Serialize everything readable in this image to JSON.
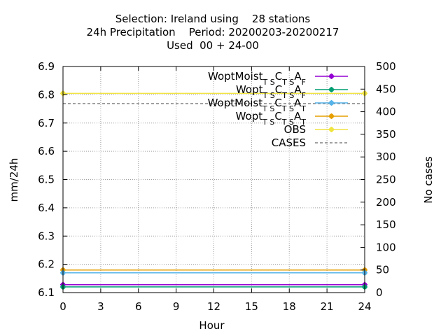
{
  "chart_data": {
    "type": "line",
    "title_lines": [
      "Selection: Ireland using    28 stations",
      "24h Precipitation    Period: 20200203-20200217",
      "Used  00 + 24-00"
    ],
    "xlabel": "Hour",
    "ylabel": "mm/24h",
    "y2label": "No cases",
    "xlim": [
      0,
      24
    ],
    "ylim": [
      6.1,
      6.9
    ],
    "y2lim": [
      0,
      500
    ],
    "xticks": [
      "0",
      "3",
      "6",
      "9",
      "12",
      "15",
      "18",
      "21",
      "24"
    ],
    "yticks": [
      "6.1",
      "6.2",
      "6.3",
      "6.4",
      "6.5",
      "6.6",
      "6.7",
      "6.8",
      "6.9"
    ],
    "y2ticks": [
      "0",
      "50",
      "100",
      "150",
      "200",
      "250",
      "300",
      "350",
      "400",
      "450",
      "500"
    ],
    "grid": true,
    "legend_position": "top-right",
    "series": [
      {
        "name": "WoptMoist",
        "sub1": "T S",
        "mid": "C",
        "sub2": "T S",
        "end": "A",
        "sub3": "F",
        "color": "#9400d3",
        "marker": true,
        "dashed": false,
        "axis": "y",
        "x": [
          0,
          24
        ],
        "values": [
          6.128,
          6.128
        ]
      },
      {
        "name": "Wopt",
        "sub1": "T S",
        "mid": "C",
        "sub2": "T S",
        "end": "A",
        "sub3": "F",
        "color": "#009e73",
        "marker": true,
        "dashed": false,
        "axis": "y",
        "x": [
          0,
          24
        ],
        "values": [
          6.12,
          6.12
        ]
      },
      {
        "name": "WoptMoist",
        "sub1": "T S",
        "mid": "C",
        "sub2": "T S",
        "end": "A",
        "sub3": "T",
        "color": "#56b4e9",
        "marker": true,
        "dashed": false,
        "axis": "y",
        "x": [
          0,
          24
        ],
        "values": [
          6.17,
          6.17
        ]
      },
      {
        "name": "Wopt",
        "sub1": "T S",
        "mid": "C",
        "sub2": "T S",
        "end": "A",
        "sub3": "T",
        "color": "#e69f00",
        "marker": true,
        "dashed": false,
        "axis": "y",
        "x": [
          0,
          24
        ],
        "values": [
          6.18,
          6.18
        ]
      },
      {
        "name": "OBS",
        "color": "#f0e442",
        "marker": true,
        "dashed": false,
        "axis": "y",
        "x": [
          0,
          24
        ],
        "values": [
          6.805,
          6.805
        ]
      },
      {
        "name": "CASES",
        "color": "#808080",
        "marker": false,
        "dashed": true,
        "axis": "y2",
        "x": [
          0,
          24
        ],
        "values": [
          418,
          418
        ]
      }
    ]
  }
}
